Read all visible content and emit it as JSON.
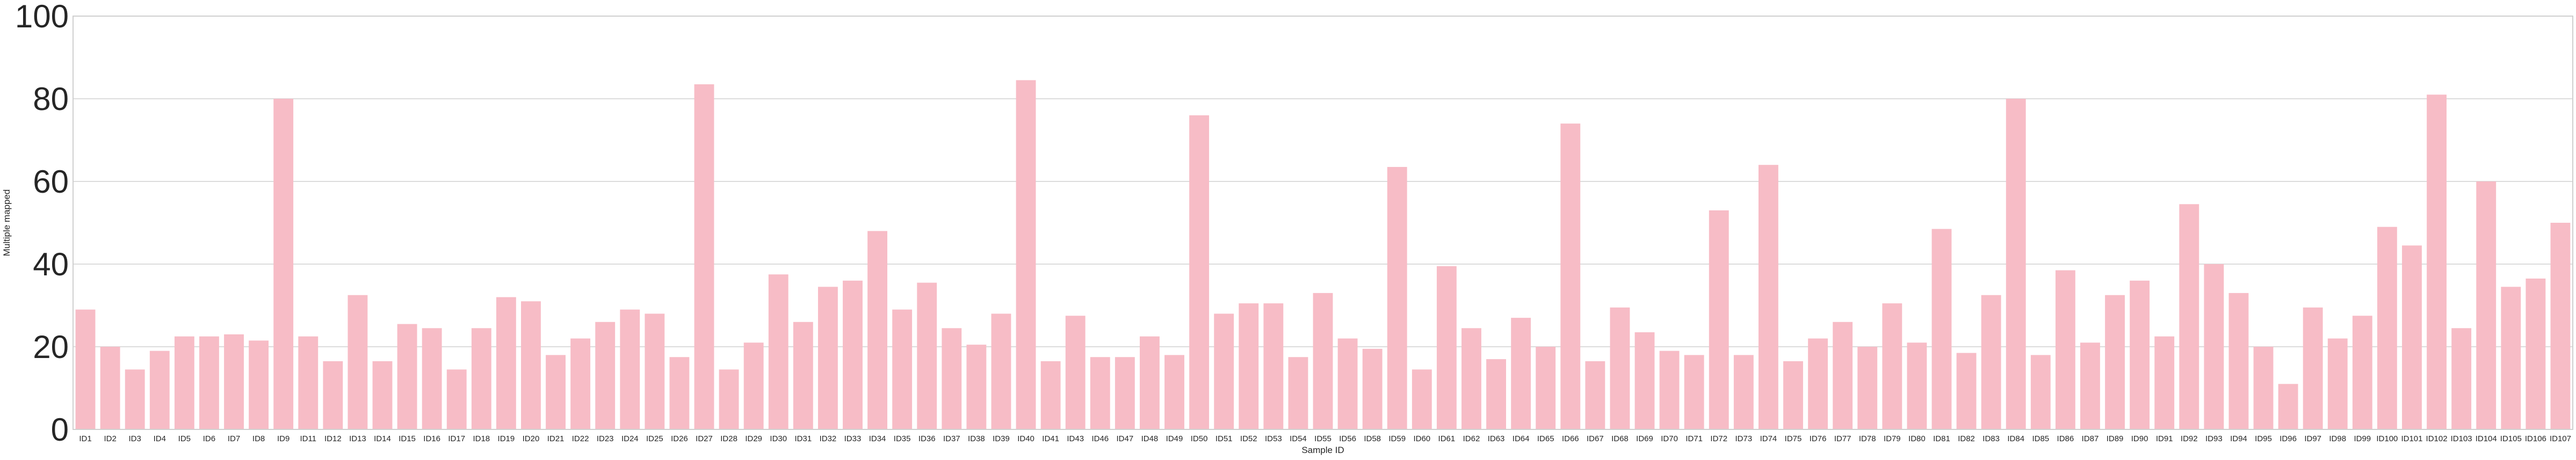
{
  "chart_data": {
    "type": "bar",
    "xlabel": "Sample ID",
    "ylabel": "Multiple mapped",
    "ylim": [
      0,
      100
    ],
    "yticks": [
      0,
      20,
      40,
      60,
      80,
      100
    ],
    "grid": true,
    "bar_color": "#f7bcc6",
    "categories": [
      "ID1",
      "ID2",
      "ID3",
      "ID4",
      "ID5",
      "ID6",
      "ID7",
      "ID8",
      "ID9",
      "ID11",
      "ID12",
      "ID13",
      "ID14",
      "ID15",
      "ID16",
      "ID17",
      "ID18",
      "ID19",
      "ID20",
      "ID21",
      "ID22",
      "ID23",
      "ID24",
      "ID25",
      "ID26",
      "ID27",
      "ID28",
      "ID29",
      "ID30",
      "ID31",
      "ID32",
      "ID33",
      "ID34",
      "ID35",
      "ID36",
      "ID37",
      "ID38",
      "ID39",
      "ID40",
      "ID41",
      "ID43",
      "ID46",
      "ID47",
      "ID48",
      "ID49",
      "ID50",
      "ID51",
      "ID52",
      "ID53",
      "ID54",
      "ID55",
      "ID56",
      "ID58",
      "ID59",
      "ID60",
      "ID61",
      "ID62",
      "ID63",
      "ID64",
      "ID65",
      "ID66",
      "ID67",
      "ID68",
      "ID69",
      "ID70",
      "ID71",
      "ID72",
      "ID73",
      "ID74",
      "ID75",
      "ID76",
      "ID77",
      "ID78",
      "ID79",
      "ID80",
      "ID81",
      "ID82",
      "ID83",
      "ID84",
      "ID85",
      "ID86",
      "ID87",
      "ID89",
      "ID90",
      "ID91",
      "ID92",
      "ID93",
      "ID94",
      "ID95",
      "ID96",
      "ID97",
      "ID98",
      "ID99",
      "ID100",
      "ID101",
      "ID102",
      "ID103",
      "ID104",
      "ID105",
      "ID106",
      "ID107"
    ],
    "values": [
      29,
      20,
      14.5,
      19,
      22.5,
      22.5,
      23,
      21.5,
      80,
      22.5,
      16.5,
      32.5,
      16.5,
      25.5,
      24.5,
      14.5,
      24.5,
      32,
      31,
      18,
      22,
      26,
      29,
      28,
      17.5,
      83.5,
      14.5,
      21,
      37.5,
      26,
      34.5,
      36,
      48,
      29,
      35.5,
      24.5,
      20.5,
      28,
      84.5,
      16.5,
      27.5,
      17.5,
      17.5,
      22.5,
      18,
      76,
      28,
      30.5,
      30.5,
      17.5,
      33,
      22,
      19.5,
      63.5,
      14.5,
      39.5,
      24.5,
      17,
      27,
      20,
      74,
      16.5,
      29.5,
      23.5,
      19,
      18,
      53,
      18,
      64,
      16.5,
      22,
      26,
      20,
      30.5,
      21,
      48.5,
      18.5,
      32.5,
      80,
      18,
      38.5,
      21,
      32.5,
      36,
      22.5,
      54.5,
      40,
      33,
      20,
      11,
      29.5,
      22,
      27.5,
      49,
      44.5,
      81,
      24.5,
      60,
      34.5,
      36.5,
      50
    ]
  }
}
